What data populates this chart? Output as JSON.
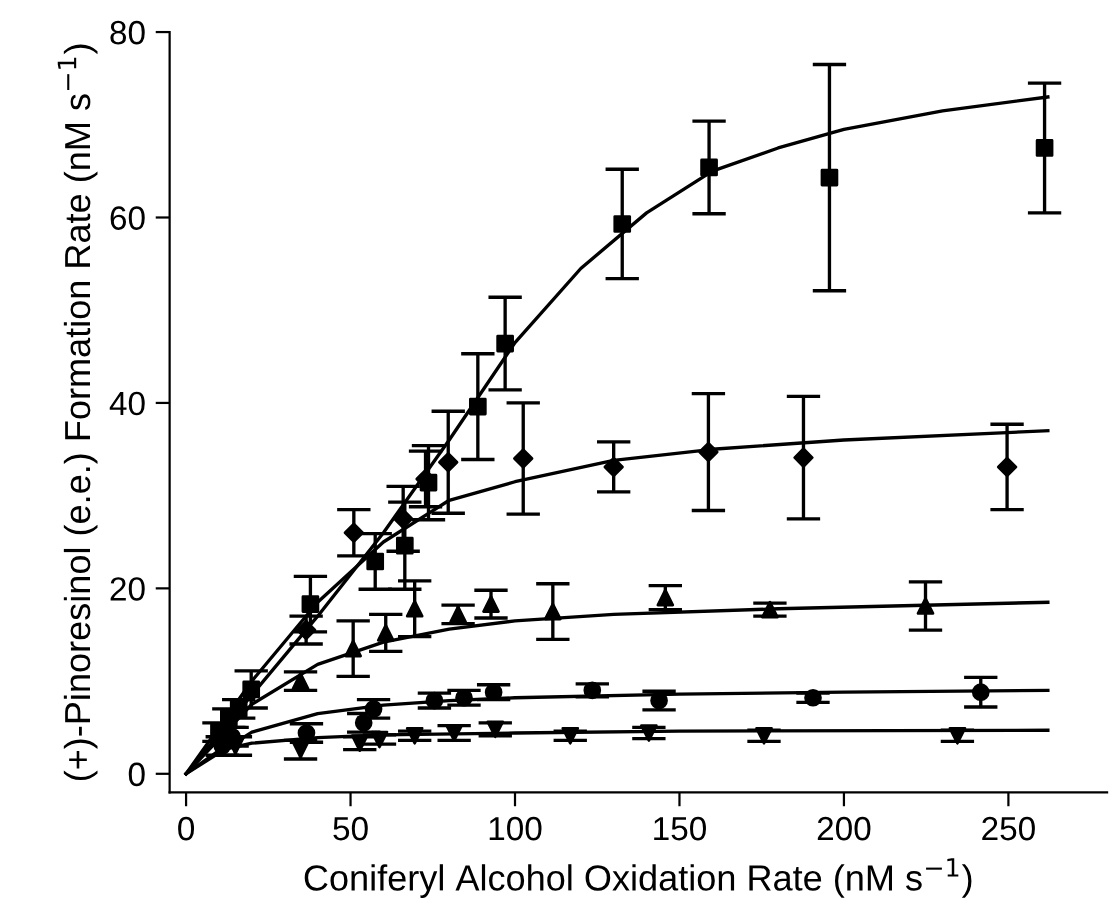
{
  "chart_data": {
    "type": "scatter",
    "xlabel": "Coniferyl Alcohol Oxidation Rate (nM s$^{−1}$)",
    "ylabel": "(+)-Pinoresinol (e.e.) Formation Rate (nM s$^{−1}$)",
    "xlim": [
      -5,
      280
    ],
    "ylim": [
      -2,
      80
    ],
    "xticks": [
      0,
      50,
      100,
      150,
      200,
      250
    ],
    "yticks": [
      0,
      20,
      40,
      60,
      80
    ],
    "grid": false,
    "series": [
      {
        "marker": "square",
        "color": "#000000",
        "x": [
          10,
          13,
          16,
          19.8,
          37.8,
          57.5,
          66.5,
          73.7,
          88.7,
          97,
          132.6,
          159,
          195.6,
          261
        ],
        "values": [
          4.5,
          6,
          7,
          9.1,
          18.3,
          22.9,
          24.6,
          31.4,
          39.6,
          46.4,
          59.3,
          65.4,
          64.3,
          67.5
        ],
        "errors": [
          1,
          1,
          1,
          2,
          3,
          3,
          4.7,
          4,
          5.7,
          5,
          5.9,
          5,
          12.2,
          7
        ]
      },
      {
        "marker": "diamond",
        "color": "#000000",
        "x": [
          36.5,
          51,
          66,
          72.8,
          79.7,
          102.5,
          130,
          158.8,
          187.7,
          249.6
        ],
        "values": [
          15.5,
          26,
          27.5,
          31.8,
          33.6,
          34,
          33.1,
          34.7,
          34.1,
          33.1
        ],
        "errors": [
          1.5,
          2.5,
          3.5,
          3,
          5.5,
          6,
          2.7,
          6.3,
          6.6,
          4.6
        ]
      },
      {
        "marker": "triangle",
        "color": "#000000",
        "x": [
          34.8,
          50.8,
          60.7,
          69.5,
          82.7,
          92.7,
          111.5,
          145.7,
          177.5,
          224.8
        ],
        "values": [
          10,
          13.5,
          15.2,
          17.8,
          17.2,
          18.3,
          17.5,
          19,
          17.7,
          18.1
        ],
        "errors": [
          1,
          3,
          2,
          3,
          1,
          1.5,
          3,
          1.3,
          0.7,
          2.6
        ]
      },
      {
        "marker": "circle",
        "color": "#000000",
        "x": [
          11,
          14,
          36.6,
          54,
          57,
          75.5,
          84.5,
          93.5,
          123.5,
          143.8,
          190.6,
          241.6
        ],
        "values": [
          3,
          4,
          4.4,
          5.5,
          7,
          7.9,
          8.2,
          8.8,
          9,
          7.9,
          8.2,
          8.8
        ],
        "errors": [
          1,
          1,
          1,
          1,
          1,
          0.8,
          0.8,
          0.8,
          0.7,
          1,
          0.5,
          1.6
        ]
      },
      {
        "marker": "triangle_down",
        "color": "#000000",
        "x": [
          15,
          34.8,
          52.8,
          58.8,
          69.5,
          81.5,
          94,
          116.8,
          140.7,
          175.7,
          234.5
        ],
        "values": [
          3,
          2.6,
          3.3,
          3.7,
          4.1,
          4.4,
          4.8,
          4.1,
          4.4,
          4.1,
          4.1
        ],
        "errors": [
          1,
          1,
          0.7,
          0.5,
          0.5,
          0.8,
          0.7,
          0.5,
          0.6,
          0.6,
          0.6
        ]
      },
      {
        "type": "line",
        "marker": "none",
        "color": "#000000",
        "x": [
          0,
          20,
          40,
          60,
          80,
          100,
          120,
          140,
          160,
          180,
          200,
          230,
          262
        ],
        "values": [
          0,
          8.5,
          17,
          26,
          36,
          46.5,
          54.5,
          60.5,
          65,
          67.5,
          69.5,
          71.5,
          73
        ]
      },
      {
        "type": "line",
        "marker": "none",
        "color": "#000000",
        "x": [
          0,
          20,
          40,
          60,
          80,
          100,
          130,
          160,
          200,
          262
        ],
        "values": [
          0,
          10,
          18.5,
          25,
          29.5,
          31.5,
          33.8,
          35,
          36,
          37
        ]
      },
      {
        "type": "line",
        "marker": "none",
        "color": "#000000",
        "x": [
          0,
          20,
          40,
          60,
          80,
          100,
          130,
          180,
          262
        ],
        "values": [
          0,
          7.5,
          11.8,
          14.2,
          15.6,
          16.5,
          17.2,
          17.8,
          18.5
        ]
      },
      {
        "type": "line",
        "marker": "none",
        "color": "#000000",
        "x": [
          0,
          20,
          40,
          60,
          80,
          100,
          150,
          200,
          262
        ],
        "values": [
          0,
          4.5,
          6.5,
          7.4,
          7.9,
          8.2,
          8.6,
          8.8,
          9
        ]
      },
      {
        "type": "line",
        "marker": "none",
        "color": "#000000",
        "x": [
          0,
          10,
          20,
          40,
          60,
          100,
          150,
          262
        ],
        "values": [
          0,
          2.5,
          3.3,
          3.9,
          4.2,
          4.4,
          4.6,
          4.7
        ]
      }
    ]
  }
}
